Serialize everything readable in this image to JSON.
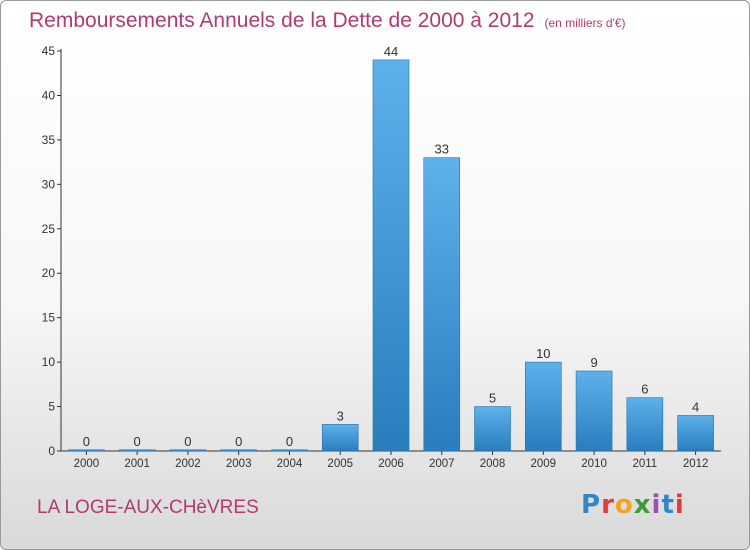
{
  "chart_data": {
    "type": "bar",
    "title": "Remboursements Annuels de la Dette de 2000 à 2012",
    "subtitle": "(en milliers d'€)",
    "categories": [
      "2000",
      "2001",
      "2002",
      "2003",
      "2004",
      "2005",
      "2006",
      "2007",
      "2008",
      "2009",
      "2010",
      "2011",
      "2012"
    ],
    "values": [
      0,
      0,
      0,
      0,
      0,
      3,
      44,
      33,
      5,
      10,
      9,
      6,
      4
    ],
    "data_labels": [
      "0",
      "0",
      "0",
      "0",
      "0",
      "3",
      "44",
      "33",
      "5",
      "10",
      "9",
      "6",
      "4"
    ],
    "yticks": [
      0,
      5,
      10,
      15,
      20,
      25,
      30,
      35,
      40,
      45
    ],
    "ylim": [
      0,
      45
    ],
    "xlabel": "",
    "ylabel": "",
    "grid": false,
    "bar_color": "#3a96d8",
    "title_color": "#b03a74"
  },
  "footer": {
    "commune": "LA LOGE-AUX-CHèVRES",
    "logo_text": "Proxiti",
    "logo_letters": [
      "P",
      "r",
      "o",
      "x",
      "i",
      "t",
      "i"
    ]
  }
}
